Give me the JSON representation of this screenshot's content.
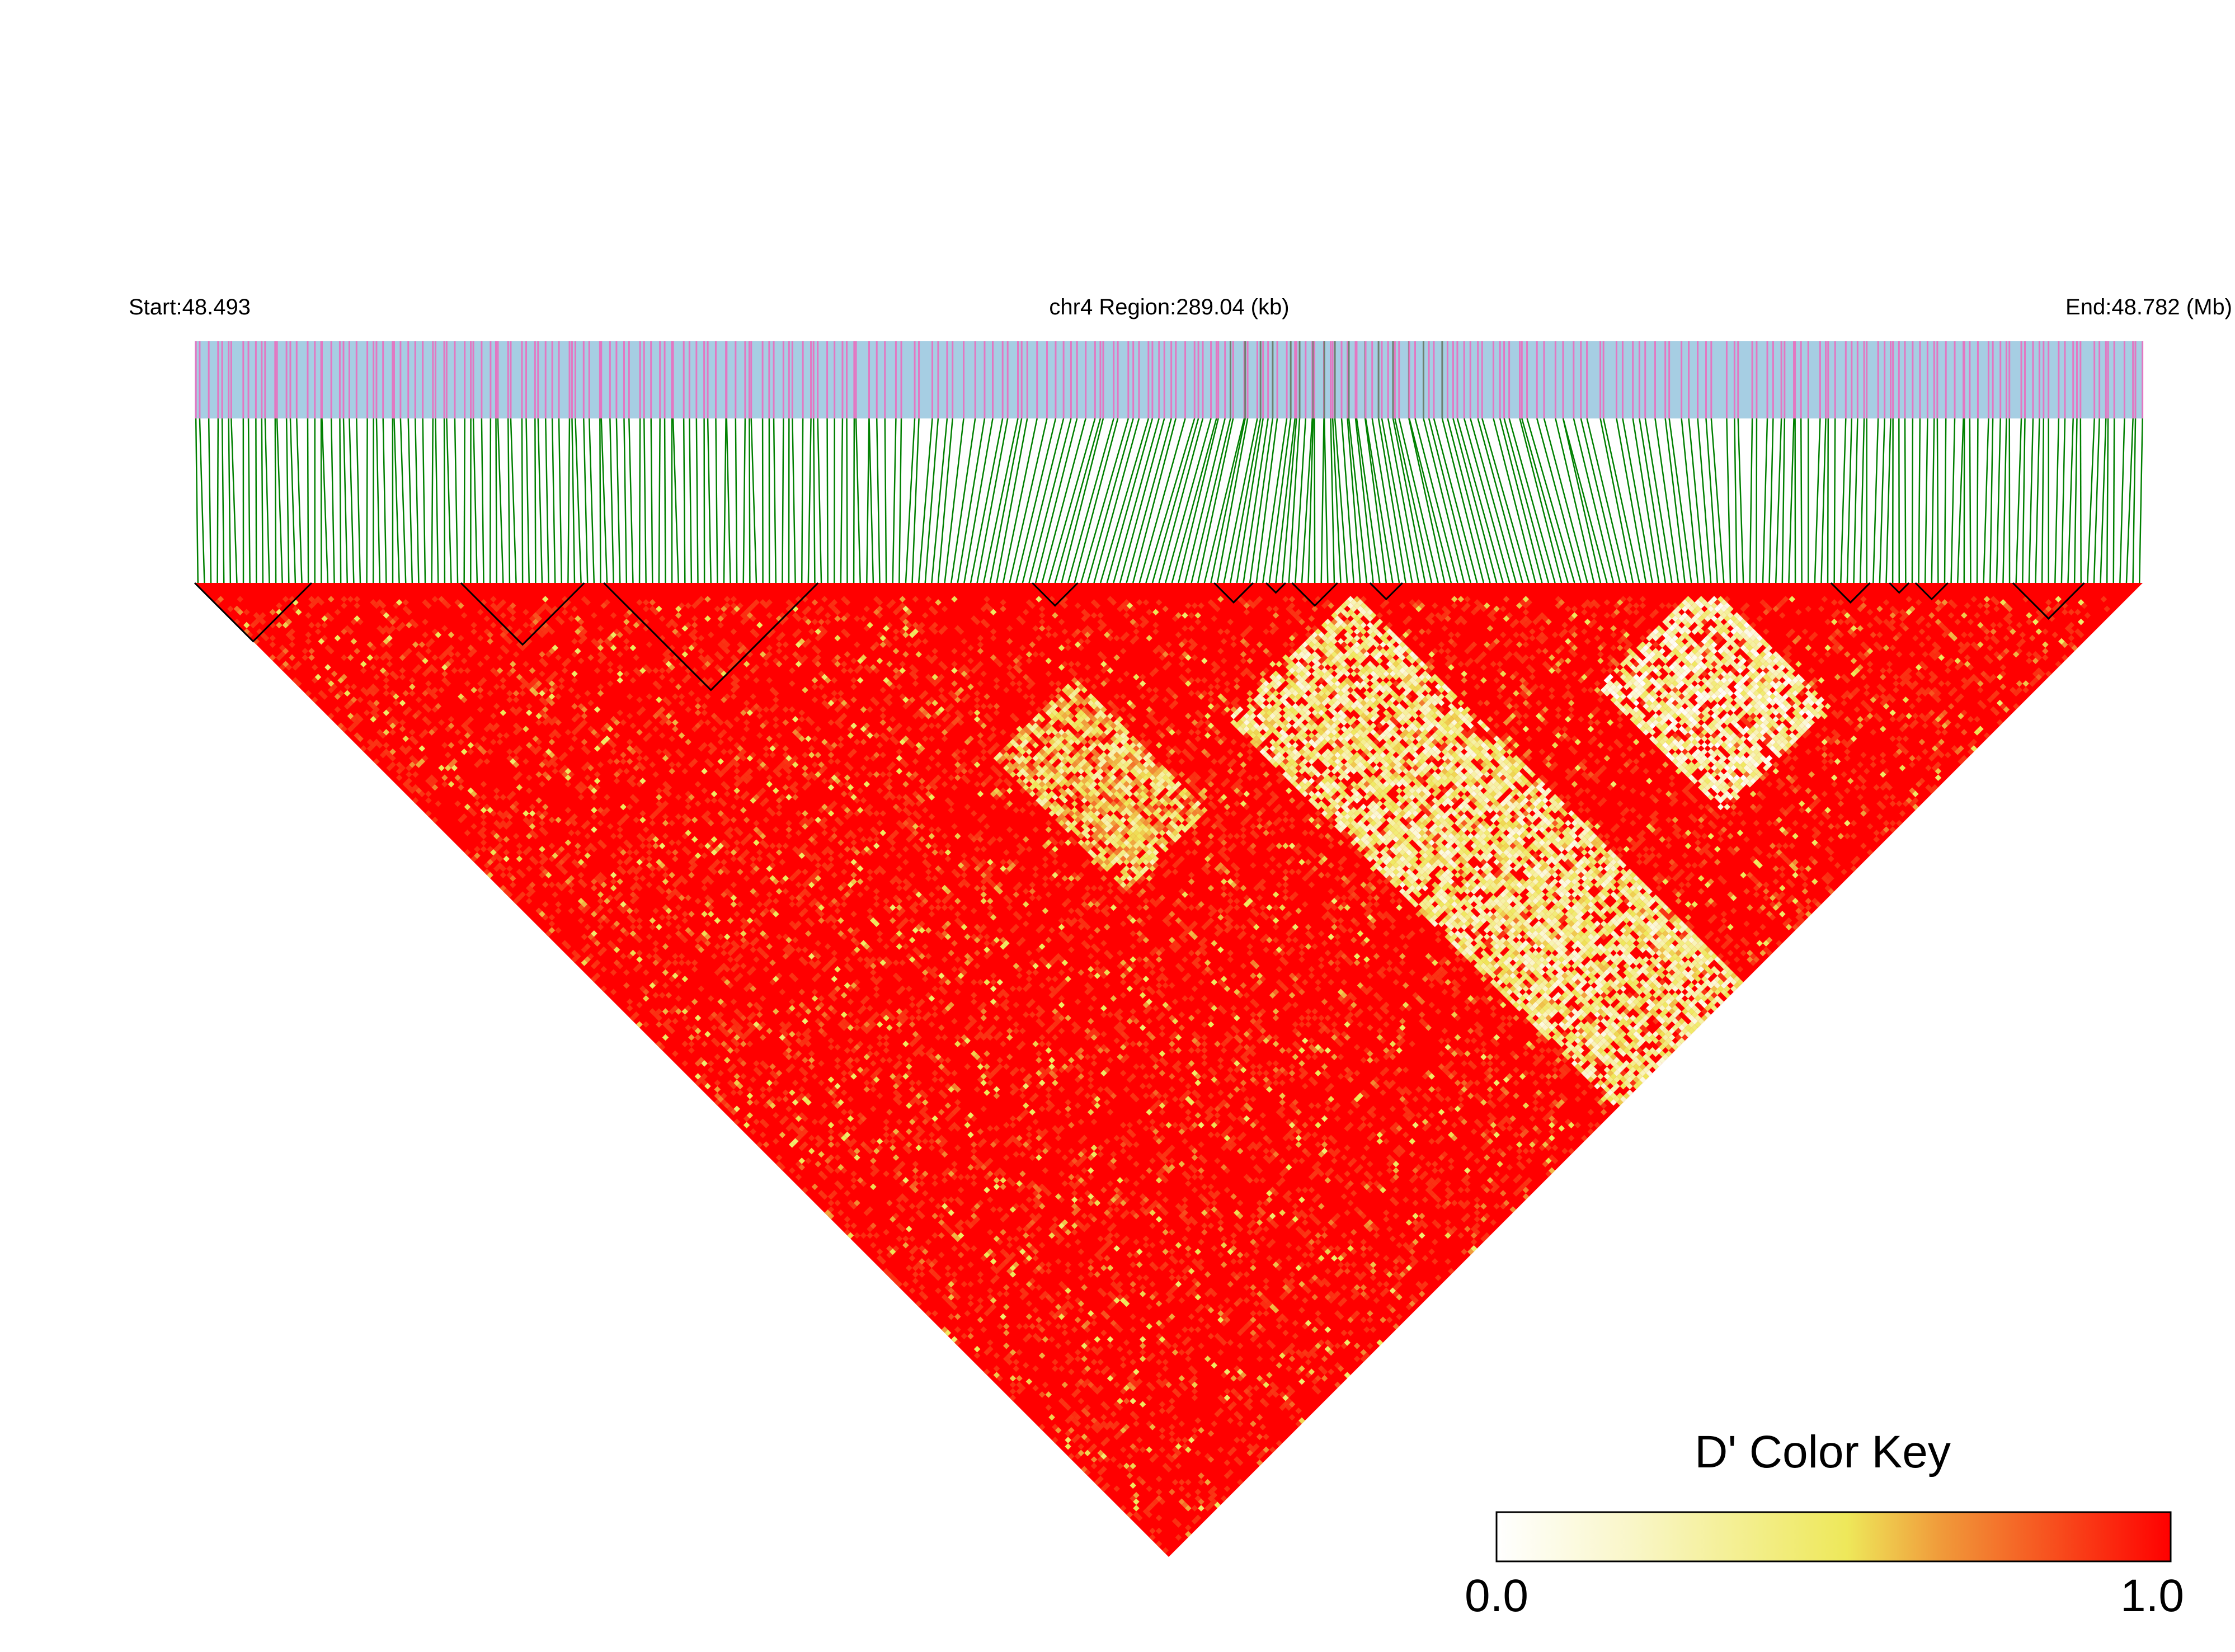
{
  "header": {
    "start_label": "Start:48.493",
    "region_label": "chr4 Region:289.04 (kb)",
    "end_label": "End:48.782 (Mb)"
  },
  "chart_data": {
    "type": "heatmap",
    "subtype": "LD triangle (D')",
    "chromosome": "chr4",
    "region_kb": 289.04,
    "start_mb": 48.493,
    "end_mb": 48.782,
    "snp_count": 300,
    "value_range": [
      0.0,
      1.0
    ],
    "low_d_bands": [
      {
        "snp_start": 138,
        "snp_end": 176,
        "partner_start": 180,
        "partner_end": 300,
        "mean_d": 0.35
      },
      {
        "snp_start": 200,
        "snp_end": 232,
        "partner_start": 232,
        "partner_end": 270,
        "mean_d": 0.25
      },
      {
        "snp_start": 96,
        "snp_end": 120,
        "partner_start": 150,
        "partner_end": 190,
        "mean_d": 0.5
      }
    ],
    "ld_blocks": [
      {
        "start": 1,
        "end": 18
      },
      {
        "start": 42,
        "end": 60
      },
      {
        "start": 64,
        "end": 96
      },
      {
        "start": 130,
        "end": 136
      },
      {
        "start": 158,
        "end": 163
      },
      {
        "start": 166,
        "end": 168
      },
      {
        "start": 170,
        "end": 176
      },
      {
        "start": 182,
        "end": 186
      },
      {
        "start": 253,
        "end": 258
      },
      {
        "start": 262,
        "end": 264
      },
      {
        "start": 266,
        "end": 270
      },
      {
        "start": 281,
        "end": 291
      }
    ],
    "color_key": {
      "title": "D' Color Key",
      "min_label": "0.0",
      "max_label": "1.0",
      "stops": [
        "#ffffff",
        "#f9f6c8",
        "#eee85a",
        "#f09a3a",
        "#ff0000"
      ]
    }
  },
  "colors": {
    "gene_track": "#a6cee3",
    "snp_tick": "#e377c2",
    "snp_dense_tick": "#6f7f6f",
    "connector": "#008000",
    "high_ld": "#ff0000"
  }
}
